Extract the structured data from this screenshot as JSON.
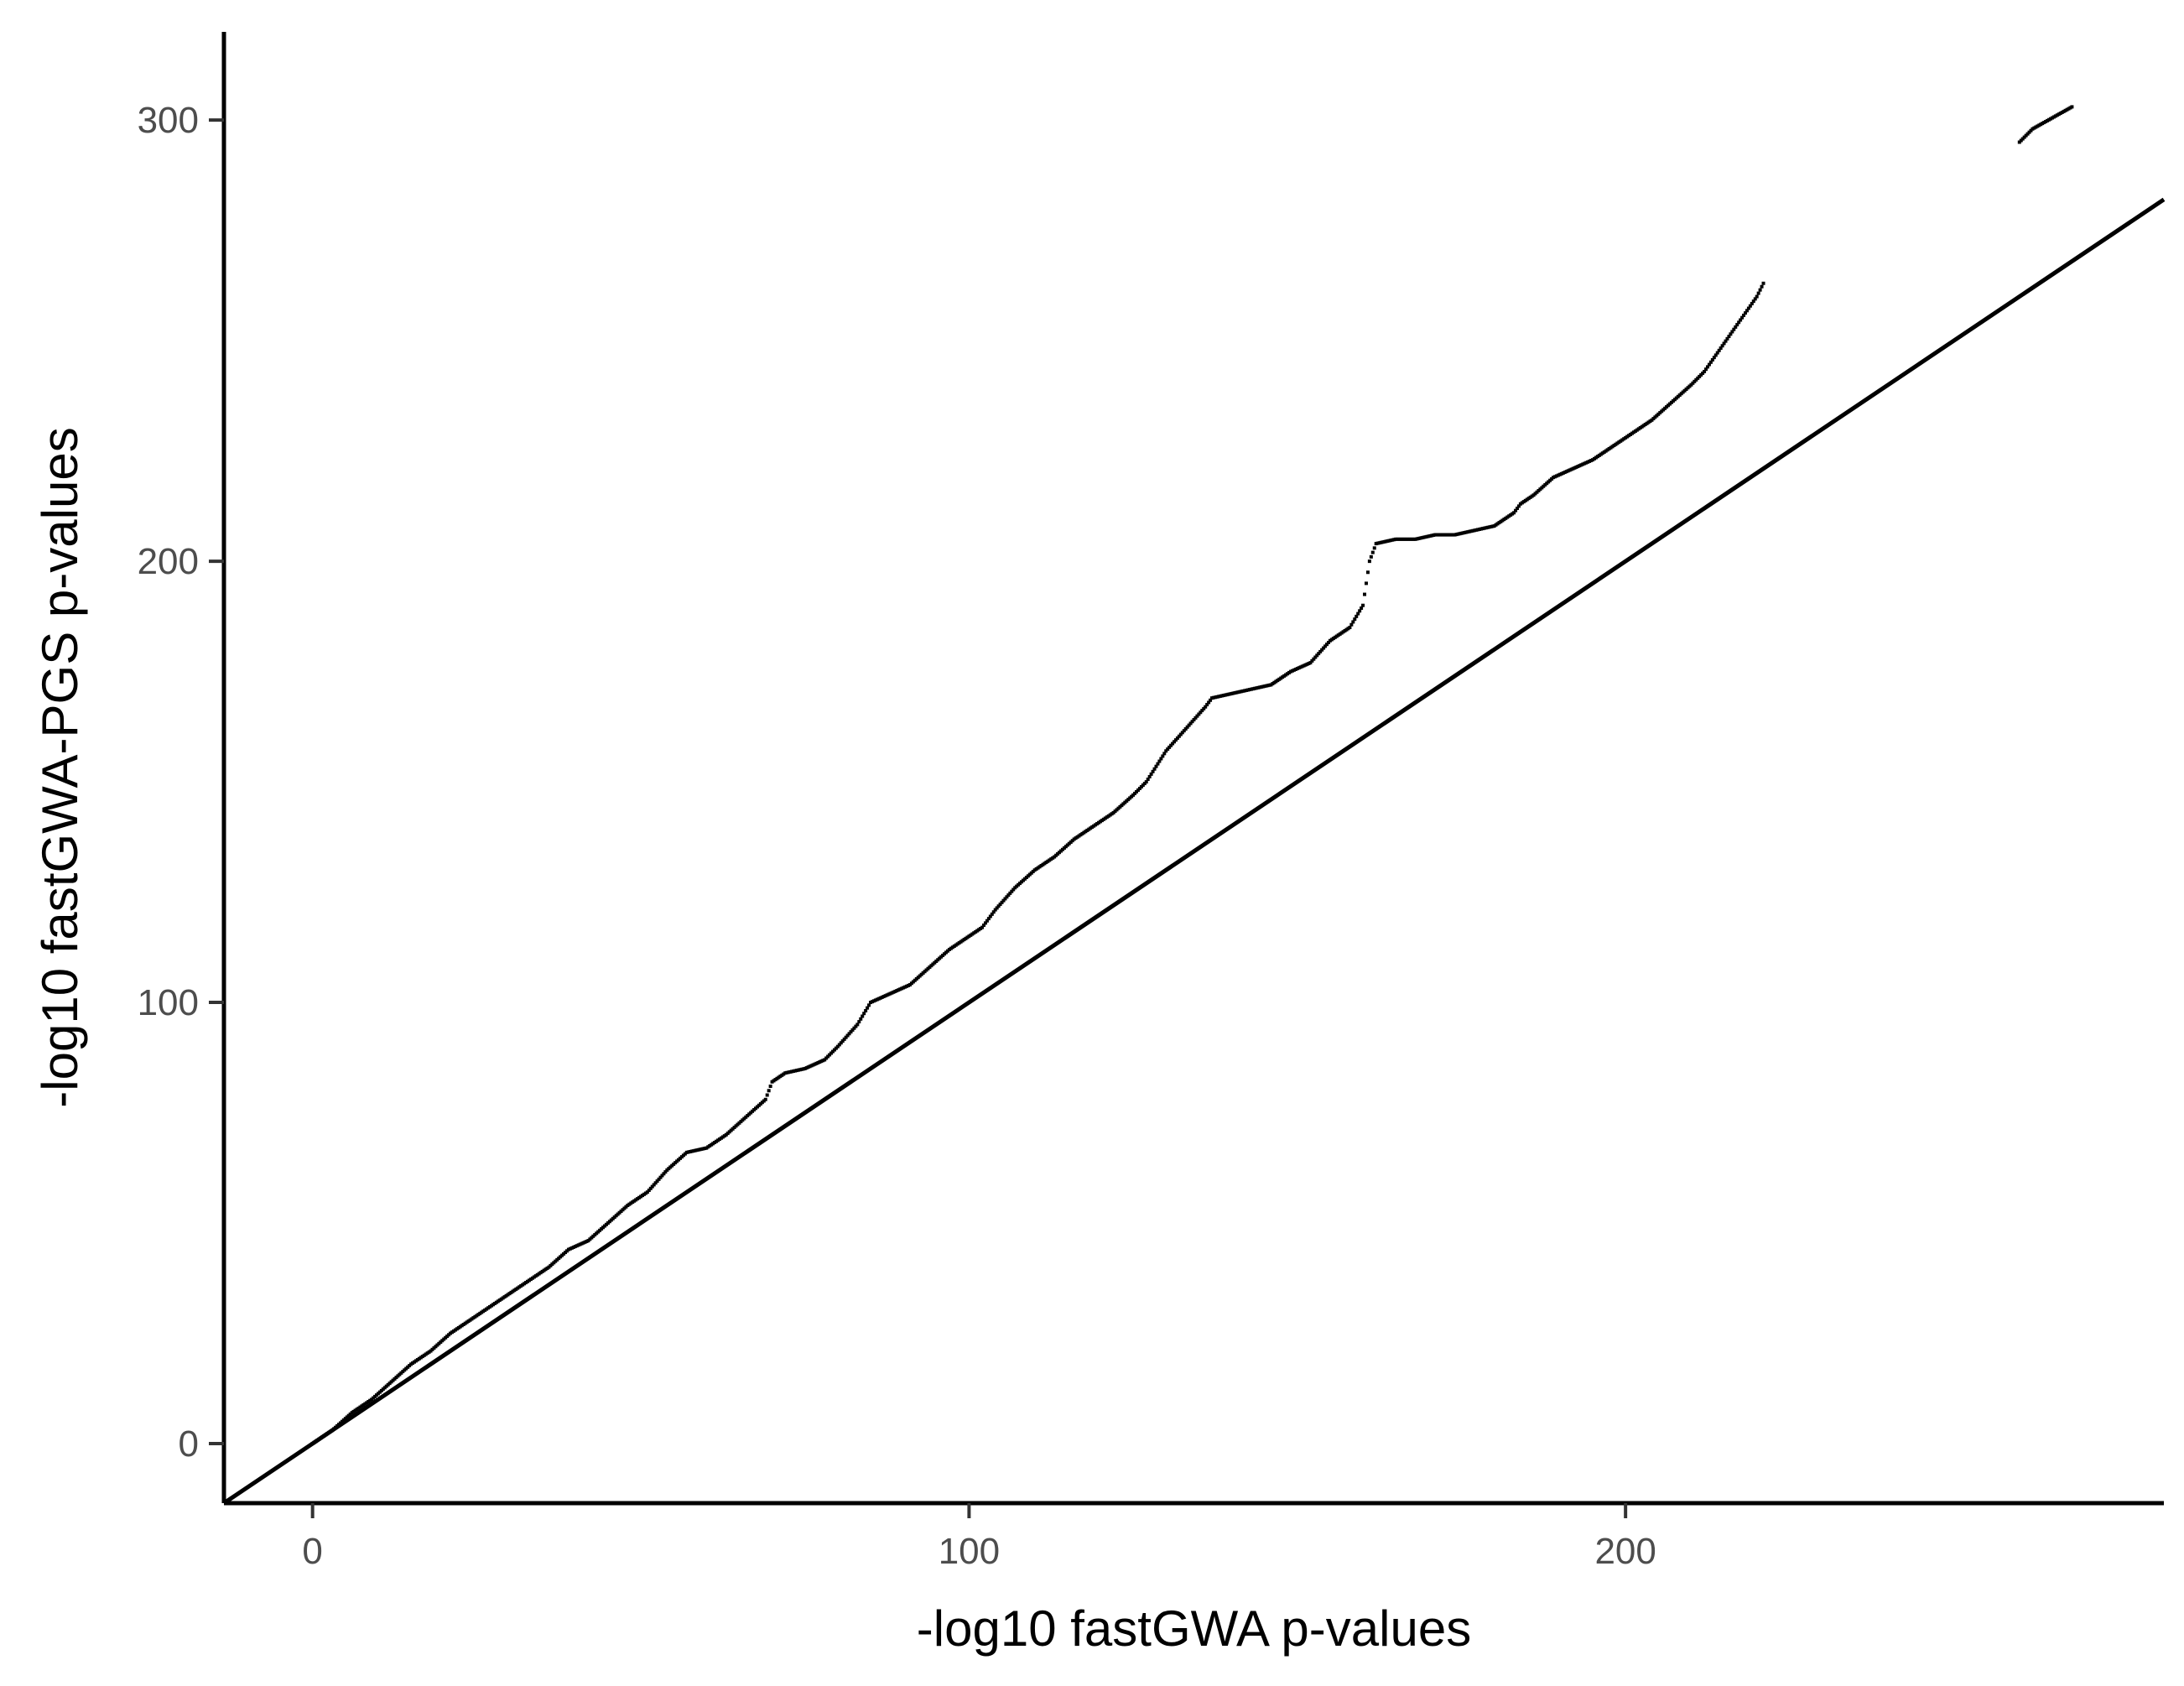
{
  "chart_data": {
    "type": "scatter",
    "title": "",
    "xlabel": "-log10 fastGWA p-values",
    "ylabel": "-log10 fastGWA-PGS p-values",
    "xlim": [
      -13.5,
      282
    ],
    "ylim": [
      -13.5,
      320
    ],
    "x_ticks": [
      0,
      100,
      200
    ],
    "y_ticks": [
      0,
      100,
      200,
      300
    ],
    "x_tick_labels": [
      "0",
      "100",
      "200"
    ],
    "y_tick_labels": [
      "0",
      "100",
      "200",
      "300"
    ],
    "reference_line": {
      "type": "identity",
      "slope": 1,
      "intercept": 0,
      "color": "#000000"
    },
    "point_color": "#000000",
    "grid": false,
    "legend": "none",
    "series": [
      {
        "x": [
          0,
          3,
          6,
          9,
          12,
          15,
          18,
          21,
          24,
          27,
          30,
          33,
          36,
          39,
          42,
          45,
          48,
          51,
          54,
          57,
          60,
          63,
          66,
          69,
          70,
          72,
          75,
          78,
          80,
          83,
          85,
          88,
          91,
          94,
          97,
          100,
          102,
          104,
          107,
          110,
          113,
          116,
          119,
          122,
          125,
          127,
          130,
          133,
          136,
          137,
          140,
          143,
          146,
          149,
          152,
          155,
          158,
          160,
          161,
          162,
          165,
          168,
          171,
          174,
          177,
          180,
          183,
          184,
          186,
          189,
          192,
          195,
          198,
          201,
          204,
          207,
          210,
          212,
          220,
          221,
          260,
          262,
          268
        ],
        "y": [
          0,
          3,
          7,
          10,
          14,
          18,
          21,
          25,
          28,
          31,
          34,
          37,
          40,
          44,
          46,
          50,
          54,
          57,
          62,
          66,
          67,
          70,
          74,
          78,
          82,
          84,
          85,
          87,
          90,
          95,
          100,
          102,
          104,
          108,
          112,
          115,
          117,
          121,
          126,
          130,
          133,
          137,
          140,
          143,
          147,
          150,
          157,
          162,
          167,
          169,
          170,
          171,
          172,
          175,
          177,
          182,
          185,
          190,
          200,
          204,
          205,
          205,
          206,
          206,
          207,
          208,
          211,
          213,
          215,
          219,
          221,
          223,
          226,
          229,
          232,
          236,
          240,
          243,
          260,
          263,
          295,
          298,
          303
        ]
      }
    ]
  }
}
